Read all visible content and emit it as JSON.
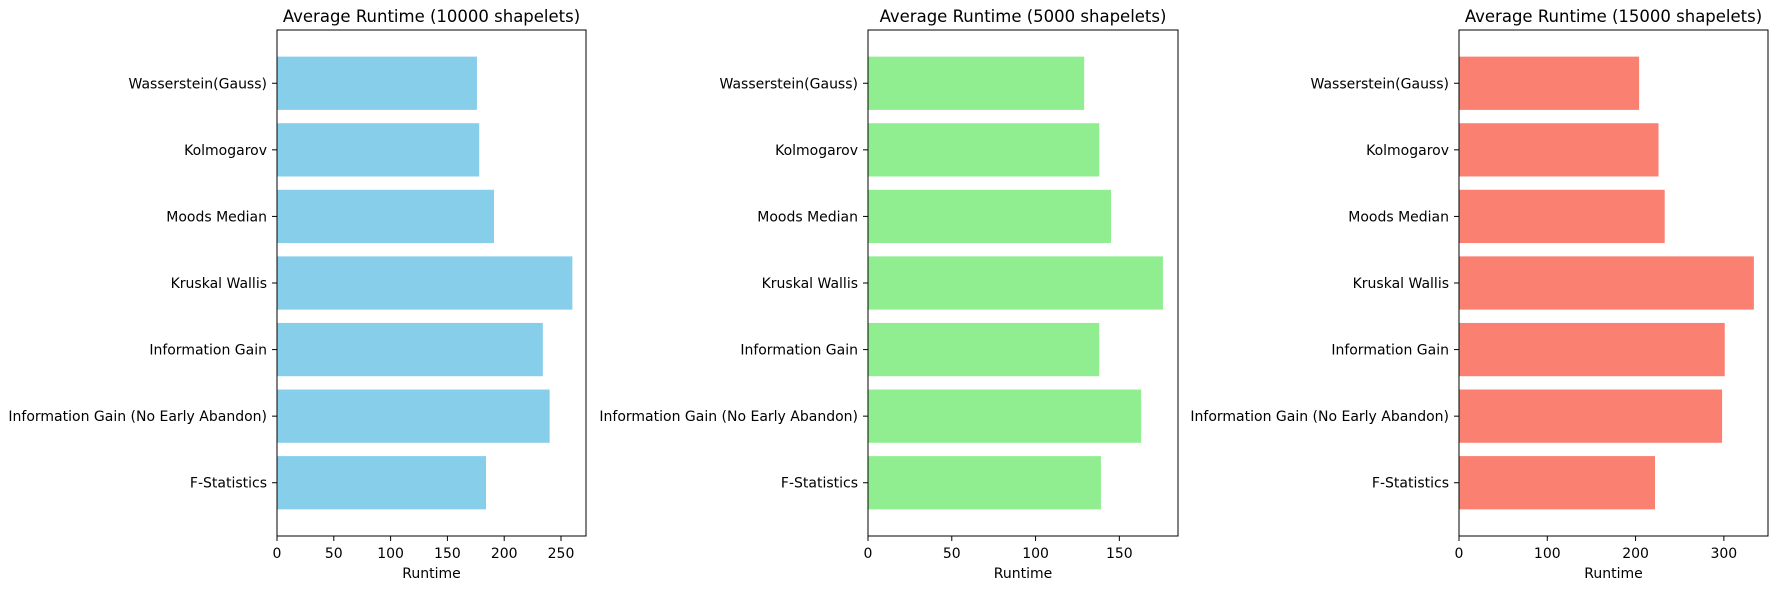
{
  "chart_data": [
    {
      "type": "bar",
      "orientation": "horizontal",
      "title": "Average Runtime (10000 shapelets)",
      "xlabel": "Runtime",
      "ylabel": "",
      "categories": [
        "F-Statistics",
        "Information Gain (No Early Abandon)",
        "Information Gain",
        "Kruskal Wallis",
        "Moods Median",
        "Kolmogarov",
        "Wasserstein(Gauss)"
      ],
      "values": [
        184,
        240,
        234,
        260,
        191,
        178,
        176
      ],
      "xlim": [
        0,
        272
      ],
      "xticks": [
        0,
        50,
        100,
        150,
        200,
        250
      ],
      "color": "#87CEEB",
      "grid": false
    },
    {
      "type": "bar",
      "orientation": "horizontal",
      "title": "Average Runtime (5000 shapelets)",
      "xlabel": "Runtime",
      "ylabel": "",
      "categories": [
        "F-Statistics",
        "Information Gain (No Early Abandon)",
        "Information Gain",
        "Kruskal Wallis",
        "Moods Median",
        "Kolmogarov",
        "Wasserstein(Gauss)"
      ],
      "values": [
        139,
        163,
        138,
        176,
        145,
        138,
        129
      ],
      "xlim": [
        0,
        185
      ],
      "xticks": [
        0,
        50,
        100,
        150
      ],
      "color": "#90EE90",
      "grid": false
    },
    {
      "type": "bar",
      "orientation": "horizontal",
      "title": "Average Runtime (15000 shapelets)",
      "xlabel": "Runtime",
      "ylabel": "",
      "categories": [
        "F-Statistics",
        "Information Gain (No Early Abandon)",
        "Information Gain",
        "Kruskal Wallis",
        "Moods Median",
        "Kolmogarov",
        "Wasserstein(Gauss)"
      ],
      "values": [
        222,
        298,
        301,
        334,
        233,
        226,
        204
      ],
      "xlim": [
        0,
        350
      ],
      "xticks": [
        0,
        100,
        200,
        300
      ],
      "color": "#FA8072",
      "grid": false
    }
  ]
}
